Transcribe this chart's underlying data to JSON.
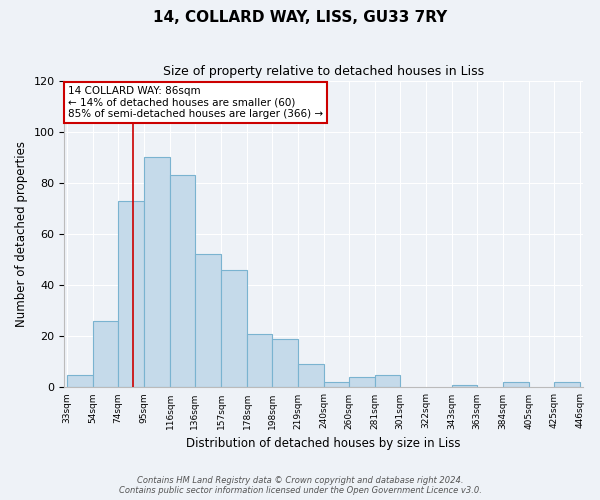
{
  "title": "14, COLLARD WAY, LISS, GU33 7RY",
  "subtitle": "Size of property relative to detached houses in Liss",
  "xlabel": "Distribution of detached houses by size in Liss",
  "ylabel": "Number of detached properties",
  "bar_values": [
    5,
    26,
    73,
    90,
    83,
    52,
    46,
    21,
    19,
    9,
    2,
    4,
    5,
    0,
    0,
    1,
    0,
    2,
    0,
    2
  ],
  "x_tick_labels": [
    "33sqm",
    "54sqm",
    "74sqm",
    "95sqm",
    "116sqm",
    "136sqm",
    "157sqm",
    "178sqm",
    "198sqm",
    "219sqm",
    "240sqm",
    "260sqm",
    "281sqm",
    "301sqm",
    "322sqm",
    "343sqm",
    "363sqm",
    "384sqm",
    "405sqm",
    "425sqm",
    "446sqm"
  ],
  "bar_color": "#c5daea",
  "bar_edge_color": "#7ab3d0",
  "annotation_box_text": "14 COLLARD WAY: 86sqm\n← 14% of detached houses are smaller (60)\n85% of semi-detached houses are larger (366) →",
  "annotation_box_color": "#ffffff",
  "annotation_box_edge_color": "#cc0000",
  "ylim": [
    0,
    120
  ],
  "yticks": [
    0,
    20,
    40,
    60,
    80,
    100,
    120
  ],
  "footer_text": "Contains HM Land Registry data © Crown copyright and database right 2024.\nContains public sector information licensed under the Open Government Licence v3.0.",
  "bin_edges": [
    33,
    54,
    74,
    95,
    116,
    136,
    157,
    178,
    198,
    219,
    240,
    260,
    281,
    301,
    322,
    343,
    363,
    384,
    405,
    425,
    446
  ],
  "vline_x": 86,
  "vline_color": "#cc0000",
  "bg_color": "#eef2f7"
}
